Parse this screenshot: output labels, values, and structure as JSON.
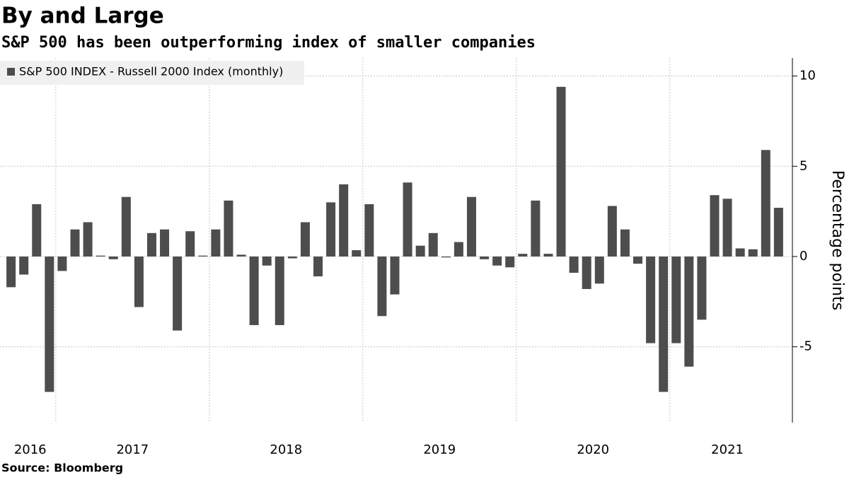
{
  "chart_data": {
    "type": "bar",
    "title": "By and Large",
    "subtitle": "S&P 500 has been outperforming index of smaller companies",
    "y_label": "Percentage points",
    "source": "Source: Bloomberg",
    "categories": [
      "2016",
      "2016",
      "2016",
      "2016",
      "2017",
      "2017",
      "2017",
      "2017",
      "2017",
      "2017",
      "2017",
      "2017",
      "2017",
      "2017",
      "2017",
      "2017",
      "2018",
      "2018",
      "2018",
      "2018",
      "2018",
      "2018",
      "2018",
      "2018",
      "2018",
      "2018",
      "2018",
      "2018",
      "2019",
      "2019",
      "2019",
      "2019",
      "2019",
      "2019",
      "2019",
      "2019",
      "2019",
      "2019",
      "2019",
      "2019",
      "2020",
      "2020",
      "2020",
      "2020",
      "2020",
      "2020",
      "2020",
      "2020",
      "2020",
      "2020",
      "2020",
      "2020",
      "2021",
      "2021",
      "2021",
      "2021",
      "2021",
      "2021",
      "2021",
      "2021",
      "2021"
    ],
    "series": [
      {
        "name": "S&P 500 INDEX - Russell 2000 Index (monthly)",
        "color": "#4d4d4d",
        "values": [
          -1.7,
          -1.0,
          2.9,
          -7.5,
          -0.8,
          1.5,
          1.9,
          0.05,
          -0.15,
          3.3,
          -2.8,
          1.3,
          1.5,
          -4.1,
          1.4,
          0.05,
          1.5,
          3.1,
          0.1,
          -3.8,
          -0.5,
          -3.8,
          -0.1,
          1.9,
          -1.1,
          3.0,
          4.0,
          0.35,
          2.9,
          -3.3,
          -2.1,
          4.1,
          0.6,
          1.3,
          -0.05,
          0.8,
          3.3,
          -0.15,
          -0.5,
          -0.6,
          0.15,
          3.1,
          0.15,
          9.4,
          -0.9,
          -1.8,
          -1.5,
          2.8,
          1.5,
          -0.4,
          -4.8,
          -7.5,
          -4.8,
          -6.1,
          -3.5,
          3.4,
          3.2,
          0.45,
          0.4,
          5.9,
          2.7
        ]
      }
    ],
    "ylim": [
      -9.2,
      11
    ],
    "yticks": [
      -5,
      0,
      5,
      10
    ],
    "grid": true
  }
}
